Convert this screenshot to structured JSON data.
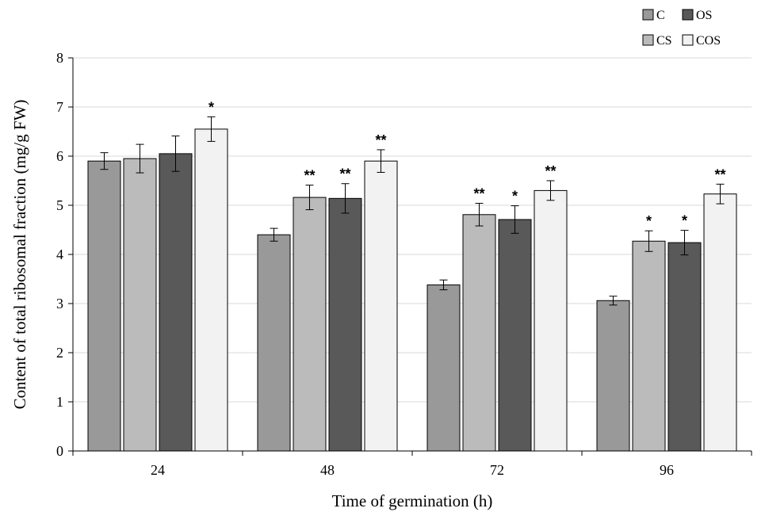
{
  "chart_data": {
    "type": "bar",
    "xlabel": "Time of germination (h)",
    "ylabel": "Content of total ribosomal fraction  (mg/g FW)",
    "ylim": [
      0,
      8
    ],
    "yticks": [
      "0",
      "1",
      "2",
      "3",
      "4",
      "5",
      "6",
      "7",
      "8"
    ],
    "categories": [
      "24",
      "48",
      "72",
      "96"
    ],
    "grid": true,
    "legend_position": "top-right",
    "series": [
      {
        "name": "C",
        "color": "#999999",
        "values": [
          5.9,
          4.4,
          3.38,
          3.06
        ],
        "errors": [
          0.17,
          0.13,
          0.1,
          0.09
        ],
        "significance": [
          "",
          "",
          "",
          ""
        ]
      },
      {
        "name": "CS",
        "color": "#bbbbbb",
        "values": [
          5.95,
          5.16,
          4.81,
          4.27
        ],
        "errors": [
          0.29,
          0.25,
          0.23,
          0.21
        ],
        "significance": [
          "",
          "**",
          "**",
          "*"
        ]
      },
      {
        "name": "OS",
        "color": "#595959",
        "values": [
          6.05,
          5.14,
          4.71,
          4.24
        ],
        "errors": [
          0.36,
          0.3,
          0.28,
          0.25
        ],
        "significance": [
          "",
          "**",
          "*",
          "*"
        ]
      },
      {
        "name": "COS",
        "color": "#f2f2f2",
        "values": [
          6.55,
          5.9,
          5.3,
          5.23
        ],
        "errors": [
          0.25,
          0.23,
          0.2,
          0.2
        ],
        "significance": [
          "*",
          "**",
          "**",
          "**"
        ]
      }
    ]
  }
}
